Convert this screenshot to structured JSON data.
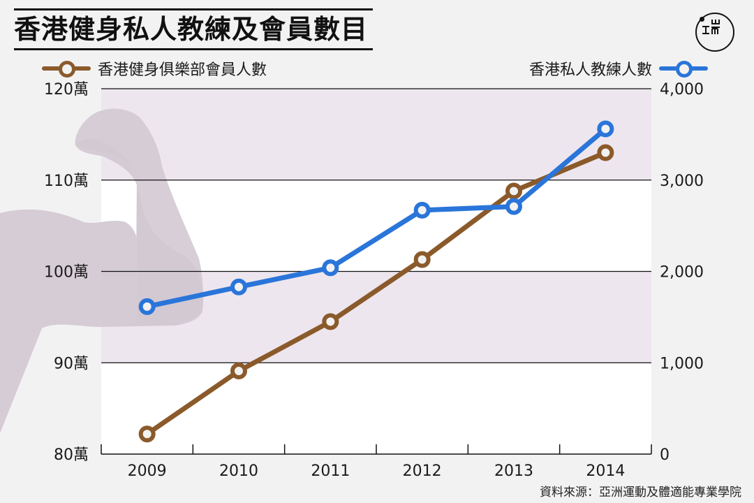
{
  "header": {
    "title": "香港健身私人教練及會員數目",
    "logo_glyph": "ㄩ\nI 冊",
    "logo_label": "端"
  },
  "legend": {
    "left": {
      "label": "香港健身俱樂部會員人數",
      "color": "#8b5a2b"
    },
    "right": {
      "label": "香港私人教練人數",
      "color": "#2a75d9"
    }
  },
  "source": "資料來源：亞洲運動及體適能專業學院",
  "colors": {
    "background": "#f2f2f2",
    "plot_band": "#ede6ee",
    "plot_white": "#ffffff",
    "arm_silhouette": "#d3c9d3",
    "members_line": "#8b5a2b",
    "trainers_line": "#2a75d9",
    "marker_fill": "#f2f2f2"
  },
  "chart_data": {
    "type": "line",
    "title": "香港健身私人教練及會員數目",
    "categories": [
      "2009",
      "2010",
      "2011",
      "2012",
      "2013",
      "2014"
    ],
    "series": [
      {
        "name": "香港健身俱樂部會員人數",
        "axis": "left",
        "unit": "萬",
        "color": "#8b5a2b",
        "values": [
          82.2,
          89.1,
          94.5,
          101.3,
          108.8,
          113.0
        ]
      },
      {
        "name": "香港私人教練人數",
        "axis": "right",
        "unit": "人",
        "color": "#2a75d9",
        "values": [
          1615,
          1830,
          2040,
          2670,
          2710,
          3560
        ]
      }
    ],
    "left_axis": {
      "ticks": [
        "80萬",
        "90萬",
        "100萬",
        "110萬",
        "120萬"
      ],
      "values": [
        80,
        90,
        100,
        110,
        120
      ],
      "ylim": [
        80,
        120
      ]
    },
    "right_axis": {
      "ticks": [
        "0",
        "1,000",
        "2,000",
        "3,000",
        "4,000"
      ],
      "values": [
        0,
        1000,
        2000,
        3000,
        4000
      ],
      "ylim": [
        0,
        4000
      ]
    },
    "xlabel": "",
    "ylabel": "",
    "grid": true,
    "legend_position": "top",
    "source": "資料來源：亞洲運動及體適能專業學院"
  }
}
